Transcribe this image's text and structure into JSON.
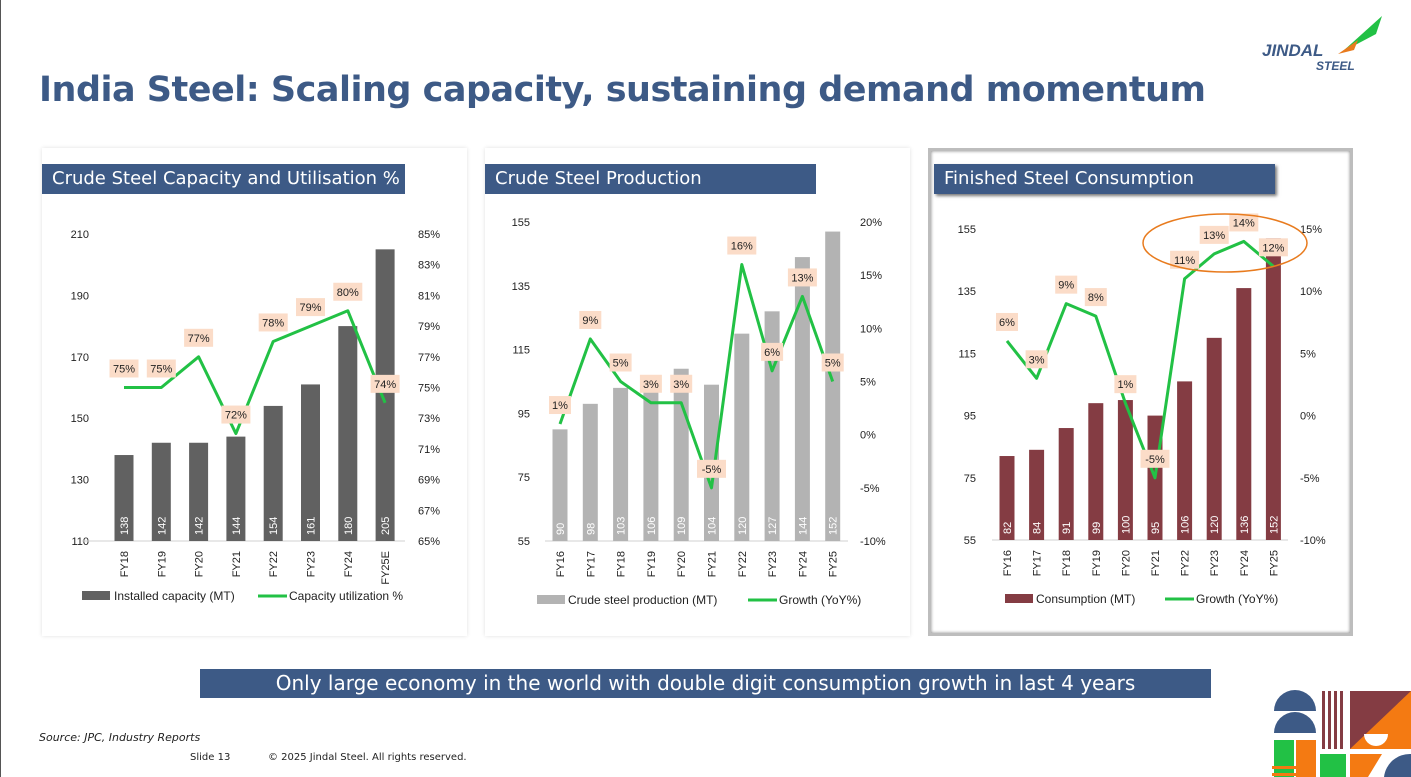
{
  "title": "India Steel: Scaling capacity, sustaining demand momentum",
  "logo": {
    "text1": "JINDAL",
    "text2": "STEEL"
  },
  "banner": "Only large economy in the world with double digit consumption growth in last 4 years",
  "footer": {
    "source": "Source: JPC, Industry Reports",
    "slide": "Slide 13",
    "copyright": "© 2025 Jindal Steel. All rights reserved."
  },
  "colors": {
    "accent": "#3d5a86",
    "green": "#22c145",
    "label_bg": "#fbdcc8",
    "highlight": "#e87b1e"
  },
  "chart_data": [
    {
      "type": "bar",
      "title": "Crude Steel Capacity and Utilisation %",
      "categories": [
        "FY18",
        "FY19",
        "FY20",
        "FY21",
        "FY22",
        "FY23",
        "FY24",
        "FY25E"
      ],
      "series": [
        {
          "name": "Installed capacity (MT)",
          "kind": "bar",
          "color": "#616161",
          "values": [
            138,
            142,
            142,
            144,
            154,
            161,
            180,
            205
          ]
        },
        {
          "name": "Capacity utilization %",
          "kind": "line",
          "color": "#22c145",
          "values": [
            75,
            75,
            77,
            72,
            78,
            79,
            80,
            74
          ]
        }
      ],
      "ylim": [
        110,
        210
      ],
      "yticks": [
        "110",
        "130",
        "150",
        "170",
        "190",
        "210"
      ],
      "y2lim": [
        65,
        85
      ],
      "y2ticks": [
        "65%",
        "67%",
        "69%",
        "71%",
        "73%",
        "75%",
        "77%",
        "79%",
        "81%",
        "83%",
        "85%"
      ],
      "line_labels": [
        "75%",
        "75%",
        "77%",
        "72%",
        "78%",
        "79%",
        "80%",
        "74%"
      ]
    },
    {
      "type": "bar",
      "title": "Crude Steel Production",
      "categories": [
        "FY16",
        "FY17",
        "FY18",
        "FY19",
        "FY20",
        "FY21",
        "FY22",
        "FY23",
        "FY24",
        "FY25"
      ],
      "series": [
        {
          "name": "Crude steel production (MT)",
          "kind": "bar",
          "color": "#b3b3b3",
          "values": [
            90,
            98,
            103,
            106,
            109,
            104,
            120,
            127,
            144,
            152
          ]
        },
        {
          "name": "Growth (YoY%)",
          "kind": "line",
          "color": "#22c145",
          "values": [
            1,
            9,
            5,
            3,
            3,
            -5,
            16,
            6,
            13,
            5
          ]
        }
      ],
      "ylim": [
        55,
        155
      ],
      "yticks": [
        "55",
        "75",
        "95",
        "115",
        "135",
        "155"
      ],
      "y2lim": [
        -10,
        20
      ],
      "y2ticks": [
        "-10%",
        "-5%",
        "0%",
        "5%",
        "10%",
        "15%",
        "20%"
      ],
      "line_labels": [
        "1%",
        "9%",
        "5%",
        "3%",
        "3%",
        "-5%",
        "16%",
        "6%",
        "13%",
        "5%"
      ]
    },
    {
      "type": "bar",
      "title": "Finished Steel Consumption",
      "categories": [
        "FY16",
        "FY17",
        "FY18",
        "FY19",
        "FY20",
        "FY21",
        "FY22",
        "FY23",
        "FY24",
        "FY25"
      ],
      "series": [
        {
          "name": "Consumption (MT)",
          "kind": "bar",
          "color": "#843c43",
          "values": [
            82,
            84,
            91,
            99,
            100,
            95,
            106,
            120,
            136,
            152
          ]
        },
        {
          "name": "Growth (YoY%)",
          "kind": "line",
          "color": "#22c145",
          "values": [
            6,
            3,
            9,
            8,
            1,
            -5,
            11,
            13,
            14,
            12
          ]
        }
      ],
      "ylim": [
        55,
        155
      ],
      "yticks": [
        "55",
        "75",
        "95",
        "115",
        "135",
        "155"
      ],
      "y2lim": [
        -10,
        15
      ],
      "y2ticks": [
        "-10%",
        "-5%",
        "0%",
        "5%",
        "10%",
        "15%"
      ],
      "line_labels": [
        "6%",
        "3%",
        "9%",
        "8%",
        "1%",
        "-5%",
        "11%",
        "13%",
        "14%",
        "12%"
      ],
      "annotation": "last 4 years growth highlighted"
    }
  ]
}
